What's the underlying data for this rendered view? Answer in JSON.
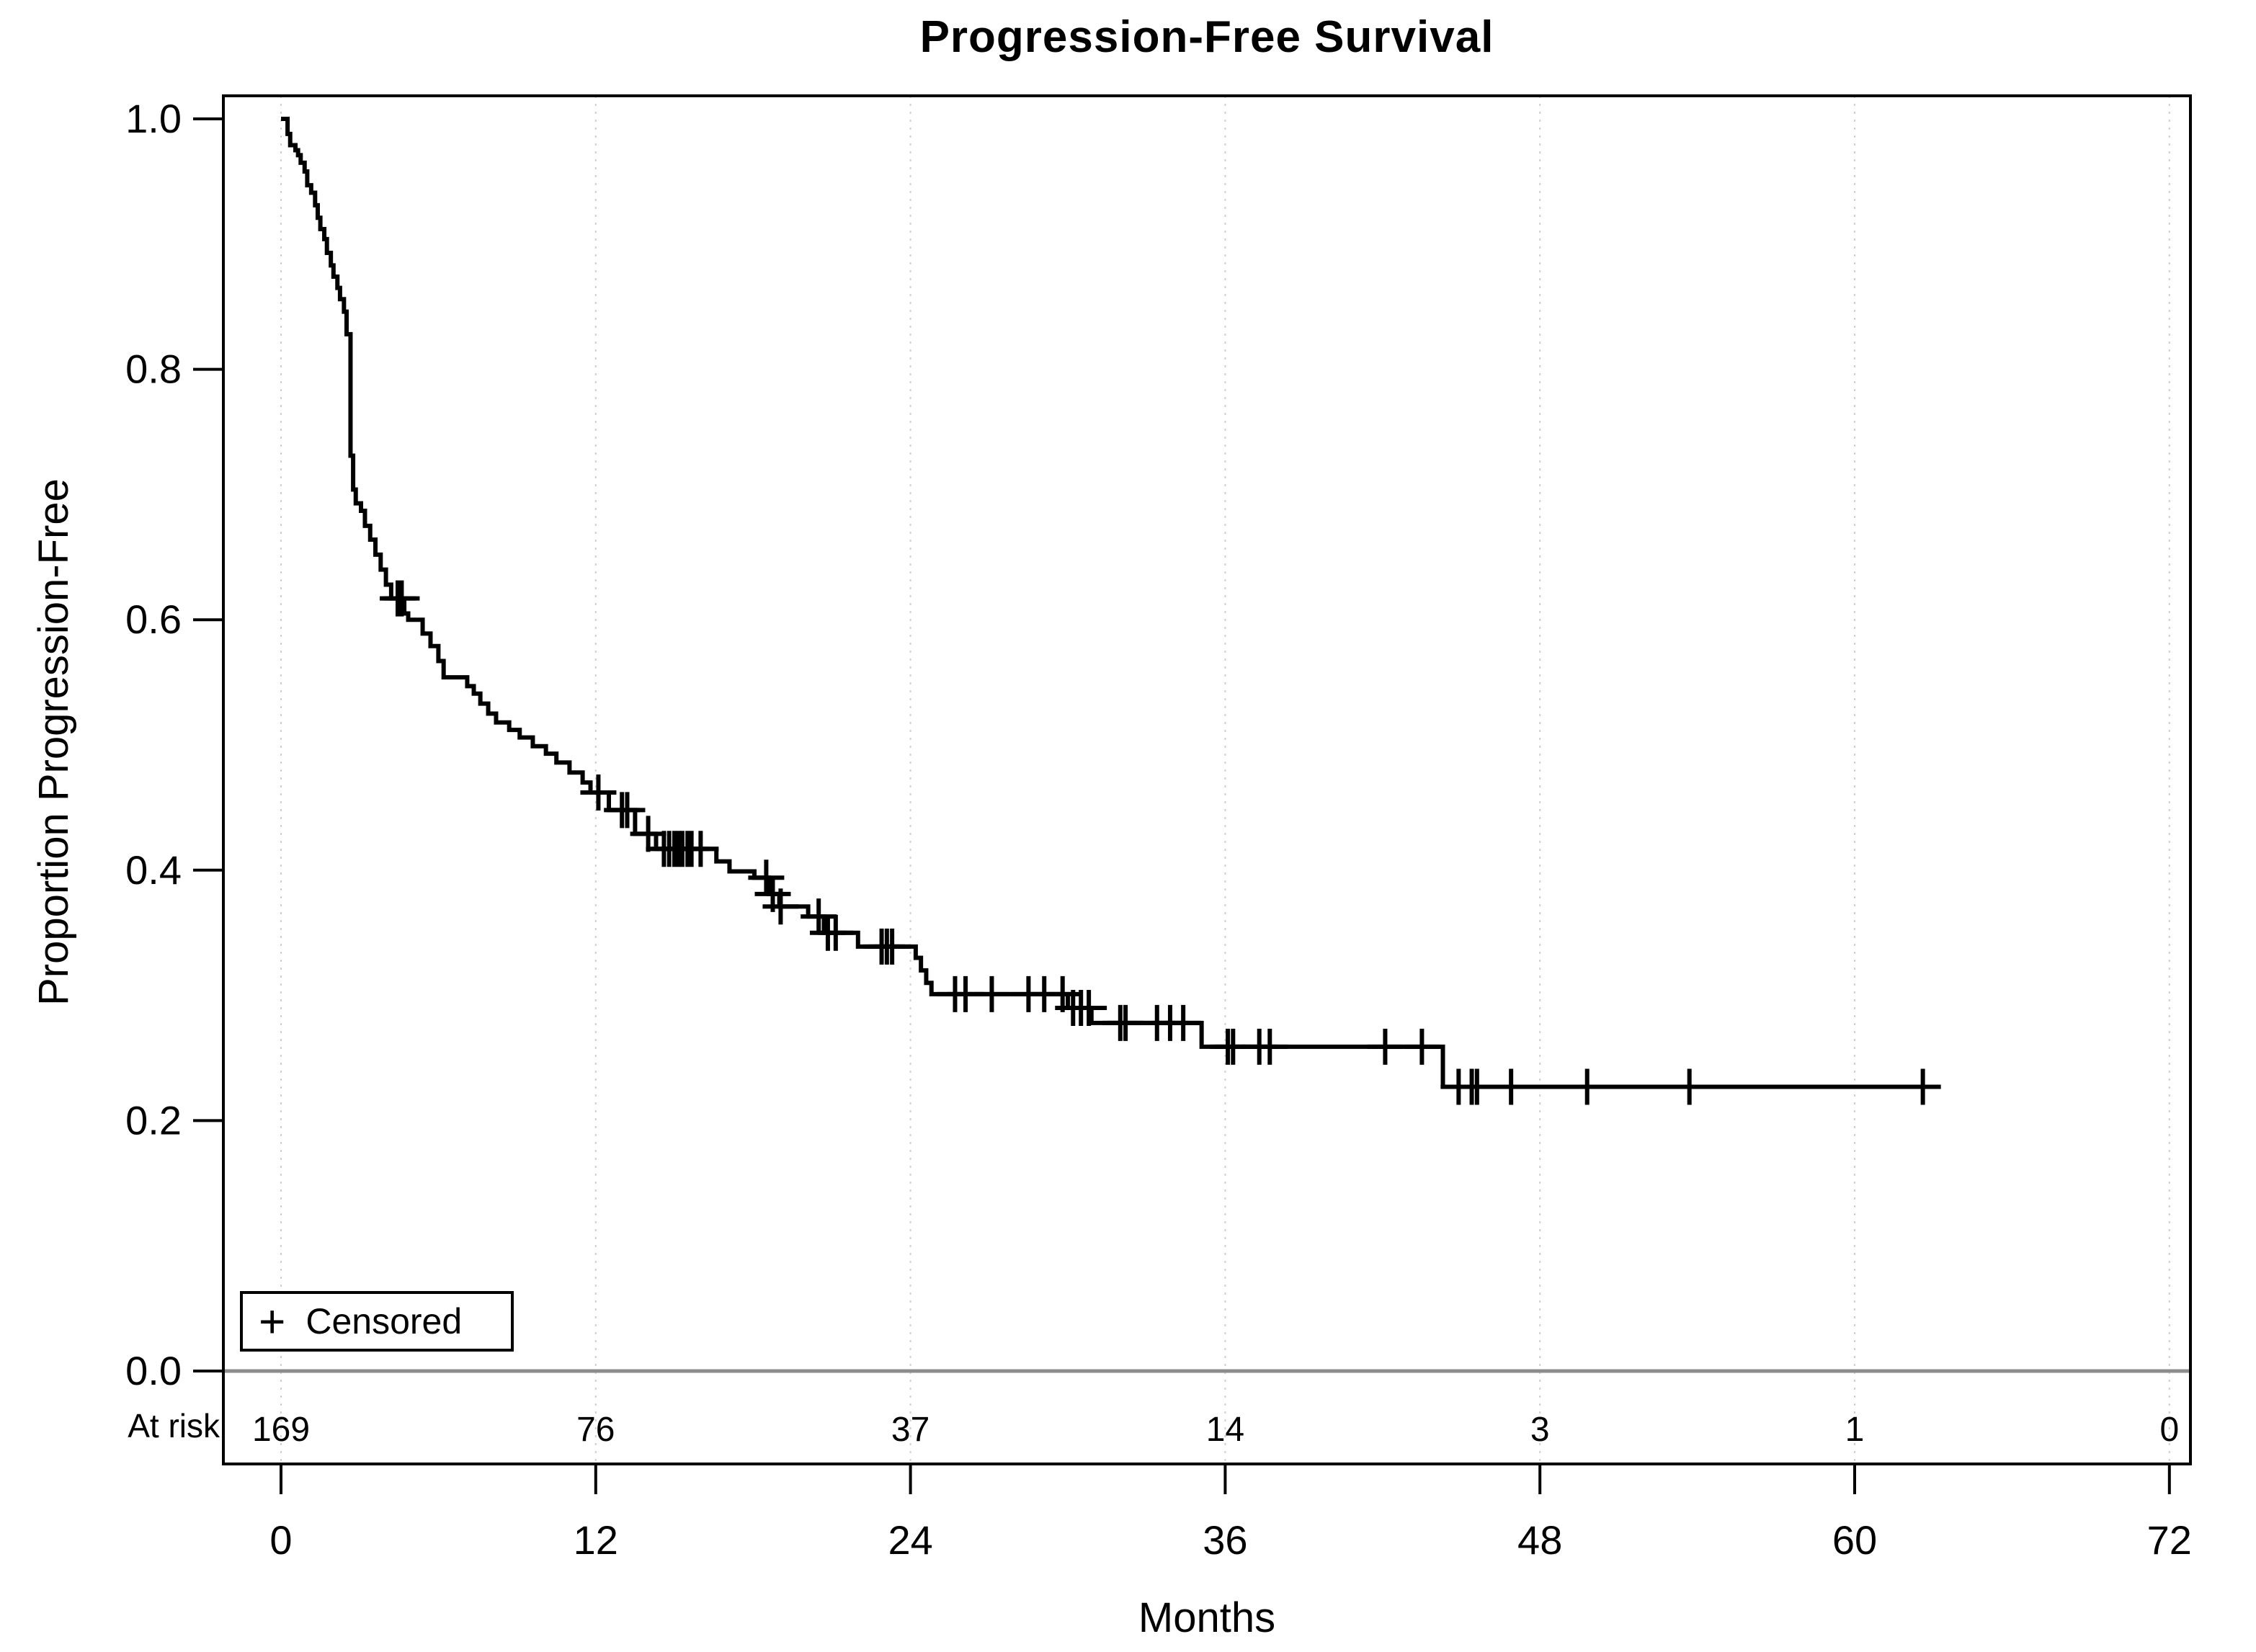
{
  "title": "Progression-Free Survival",
  "x_axis": {
    "label": "Months",
    "ticks": [
      0,
      12,
      24,
      36,
      48,
      60,
      72
    ]
  },
  "y_axis": {
    "label": "Proportion Progression-Free",
    "ticks": [
      {
        "label": "1.0",
        "value": 1.0
      },
      {
        "label": "0.8",
        "value": 0.8
      },
      {
        "label": "0.6",
        "value": 0.6
      },
      {
        "label": "0.4",
        "value": 0.4
      },
      {
        "label": "0.2",
        "value": 0.2
      },
      {
        "label": "0.0",
        "value": 0.0
      }
    ]
  },
  "legend": {
    "symbol": "+",
    "label": "Censored"
  },
  "at_risk": {
    "label": "At risk",
    "values": [
      "169",
      "76",
      "37",
      "14",
      "3",
      "1",
      "0"
    ]
  },
  "chart_data": {
    "type": "line",
    "variant": "kaplan-meier-step",
    "title": "Progression-Free Survival",
    "xlabel": "Months",
    "ylabel": "Proportion Progression-Free",
    "xlim": [
      0,
      72
    ],
    "ylim": [
      0.0,
      1.0
    ],
    "grid": "vertical-only",
    "legend_position": "bottom-left-inside",
    "line_color": "#000000",
    "gridline_color": "#cfcfcf",
    "zero_line_color": "#8c8c8c",
    "start": [
      0,
      1.0
    ],
    "end_time": 63.2,
    "steps": [
      [
        0.25,
        0.988
      ],
      [
        0.35,
        0.979
      ],
      [
        0.55,
        0.975
      ],
      [
        0.65,
        0.971
      ],
      [
        0.75,
        0.965
      ],
      [
        0.9,
        0.958
      ],
      [
        1.0,
        0.947
      ],
      [
        1.15,
        0.941
      ],
      [
        1.3,
        0.931
      ],
      [
        1.4,
        0.921
      ],
      [
        1.5,
        0.912
      ],
      [
        1.65,
        0.904
      ],
      [
        1.75,
        0.893
      ],
      [
        1.9,
        0.883
      ],
      [
        2.0,
        0.874
      ],
      [
        2.15,
        0.865
      ],
      [
        2.25,
        0.856
      ],
      [
        2.4,
        0.846
      ],
      [
        2.5,
        0.828
      ],
      [
        2.65,
        0.731
      ],
      [
        2.75,
        0.704
      ],
      [
        2.85,
        0.693
      ],
      [
        3.05,
        0.687
      ],
      [
        3.2,
        0.675
      ],
      [
        3.4,
        0.664
      ],
      [
        3.6,
        0.652
      ],
      [
        3.8,
        0.64
      ],
      [
        4.0,
        0.628
      ],
      [
        4.2,
        0.617
      ],
      [
        4.7,
        0.605
      ],
      [
        4.85,
        0.6
      ],
      [
        5.4,
        0.589
      ],
      [
        5.7,
        0.579
      ],
      [
        6.0,
        0.567
      ],
      [
        6.2,
        0.554
      ],
      [
        7.1,
        0.547
      ],
      [
        7.35,
        0.541
      ],
      [
        7.6,
        0.533
      ],
      [
        7.9,
        0.525
      ],
      [
        8.2,
        0.518
      ],
      [
        8.7,
        0.512
      ],
      [
        9.1,
        0.506
      ],
      [
        9.6,
        0.499
      ],
      [
        10.1,
        0.493
      ],
      [
        10.5,
        0.486
      ],
      [
        11.0,
        0.478
      ],
      [
        11.5,
        0.47
      ],
      [
        11.8,
        0.462
      ],
      [
        12.5,
        0.448
      ],
      [
        13.5,
        0.429
      ],
      [
        14.3,
        0.417
      ],
      [
        16.6,
        0.407
      ],
      [
        17.1,
        0.399
      ],
      [
        18.05,
        0.394
      ],
      [
        18.6,
        0.381
      ],
      [
        19.0,
        0.371
      ],
      [
        20.1,
        0.363
      ],
      [
        20.7,
        0.35
      ],
      [
        22.0,
        0.339
      ],
      [
        24.2,
        0.33
      ],
      [
        24.4,
        0.32
      ],
      [
        24.6,
        0.31
      ],
      [
        24.8,
        0.301
      ],
      [
        30.0,
        0.29
      ],
      [
        30.9,
        0.278
      ],
      [
        35.1,
        0.259
      ],
      [
        44.3,
        0.227
      ]
    ],
    "censored": [
      [
        4.45,
        0.617
      ],
      [
        4.6,
        0.617
      ],
      [
        12.1,
        0.462
      ],
      [
        13.0,
        0.448
      ],
      [
        13.2,
        0.448
      ],
      [
        14.0,
        0.429
      ],
      [
        14.6,
        0.417
      ],
      [
        14.8,
        0.417
      ],
      [
        15.0,
        0.417
      ],
      [
        15.15,
        0.417
      ],
      [
        15.3,
        0.417
      ],
      [
        15.5,
        0.417
      ],
      [
        15.65,
        0.417
      ],
      [
        16.0,
        0.417
      ],
      [
        18.5,
        0.394
      ],
      [
        18.75,
        0.381
      ],
      [
        19.05,
        0.371
      ],
      [
        20.5,
        0.363
      ],
      [
        20.85,
        0.35
      ],
      [
        21.15,
        0.35
      ],
      [
        22.9,
        0.339
      ],
      [
        23.1,
        0.339
      ],
      [
        23.3,
        0.339
      ],
      [
        25.7,
        0.301
      ],
      [
        26.1,
        0.301
      ],
      [
        27.1,
        0.301
      ],
      [
        28.5,
        0.301
      ],
      [
        29.1,
        0.301
      ],
      [
        29.8,
        0.301
      ],
      [
        30.2,
        0.29
      ],
      [
        30.5,
        0.29
      ],
      [
        30.8,
        0.29
      ],
      [
        32.0,
        0.278
      ],
      [
        32.2,
        0.278
      ],
      [
        33.4,
        0.278
      ],
      [
        33.9,
        0.278
      ],
      [
        34.4,
        0.278
      ],
      [
        36.1,
        0.259
      ],
      [
        36.3,
        0.259
      ],
      [
        37.3,
        0.259
      ],
      [
        37.7,
        0.259
      ],
      [
        42.1,
        0.259
      ],
      [
        43.5,
        0.259
      ],
      [
        44.9,
        0.227
      ],
      [
        45.4,
        0.227
      ],
      [
        45.6,
        0.227
      ],
      [
        46.9,
        0.227
      ],
      [
        49.8,
        0.227
      ],
      [
        53.7,
        0.227
      ],
      [
        62.6,
        0.227
      ]
    ]
  }
}
